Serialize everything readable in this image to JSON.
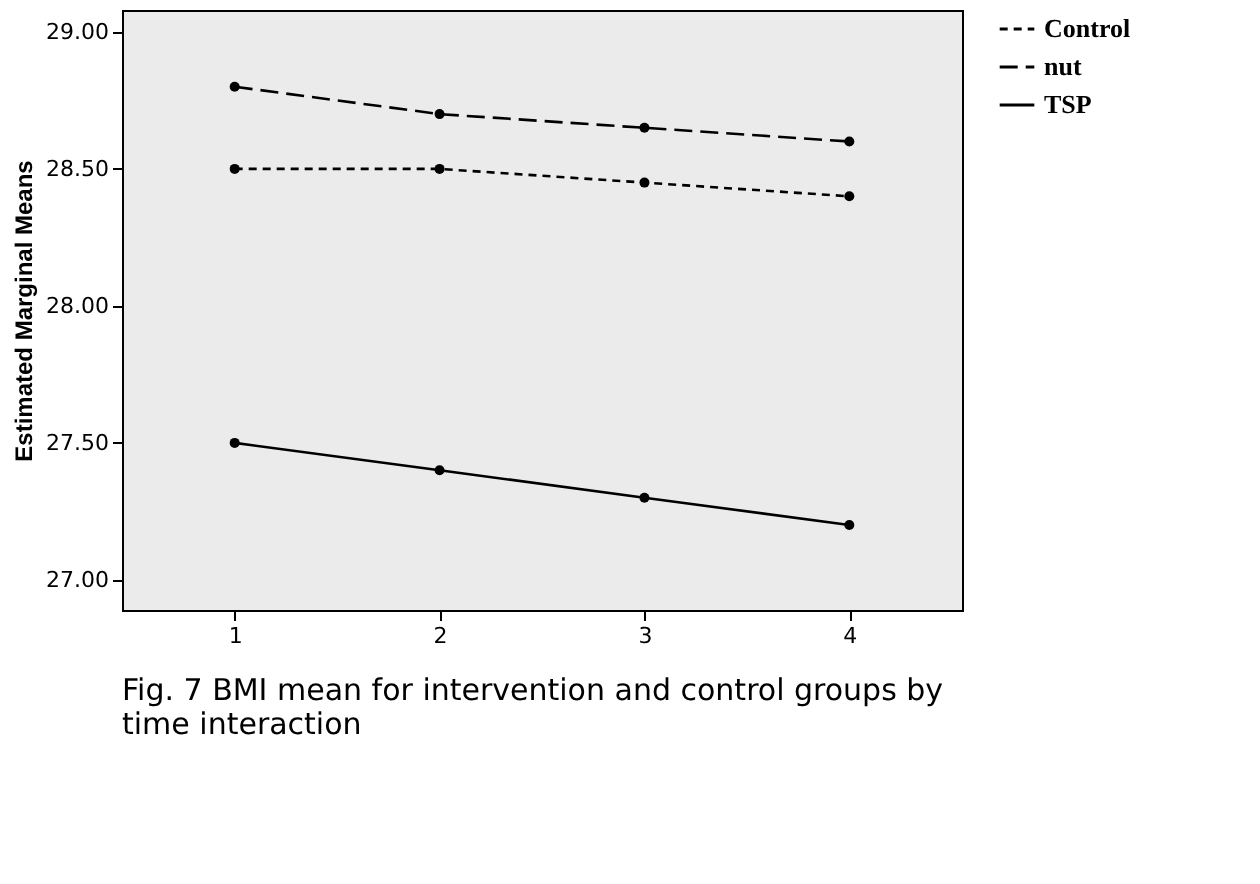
{
  "chart_data": {
    "type": "line",
    "ylabel": "Estimated Marginal Means",
    "x": [
      1,
      2,
      3,
      4
    ],
    "xlim": [
      0.45,
      4.55
    ],
    "xticks": [
      1,
      2,
      3,
      4
    ],
    "ylim": [
      26.89,
      29.08
    ],
    "yticks": [
      {
        "value": 27,
        "label": "27.00"
      },
      {
        "value": 27.5,
        "label": "27.50"
      },
      {
        "value": 28,
        "label": "28.00"
      },
      {
        "value": 28.5,
        "label": "28.50"
      },
      {
        "value": 29,
        "label": "29.00"
      }
    ],
    "series": [
      {
        "name": "Control",
        "color": "#000000",
        "line_style": "dotted",
        "values": [
          28.5,
          28.5,
          28.45,
          28.4
        ]
      },
      {
        "name": "nut",
        "color": "#000000",
        "line_style": "dashed",
        "values": [
          28.8,
          28.7,
          28.65,
          28.6
        ]
      },
      {
        "name": "TSP",
        "color": "#000000",
        "line_style": "solid",
        "values": [
          27.5,
          27.4,
          27.3,
          27.2
        ]
      }
    ],
    "marker": "circle",
    "grid": false,
    "legend": "top right",
    "annotations": [
      "Fig. 7  BMI mean for intervention and control groups by time interaction"
    ]
  }
}
